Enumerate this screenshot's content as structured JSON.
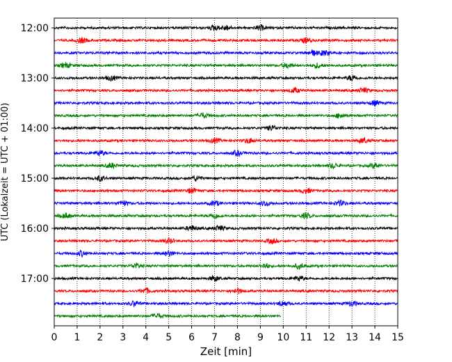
{
  "chart_data": {
    "type": "line",
    "title": "",
    "xlabel": "Zeit  [min]",
    "ylabel": "UTC (Lokalzeit = UTC + 01:00)",
    "xlim": [
      0,
      15
    ],
    "x_ticks": [
      "0",
      "1",
      "2",
      "3",
      "4",
      "5",
      "6",
      "7",
      "8",
      "9",
      "10",
      "11",
      "12",
      "13",
      "14",
      "15"
    ],
    "y_ticks": [
      "12:00",
      "13:00",
      "14:00",
      "15:00",
      "16:00",
      "17:00"
    ],
    "grid": "vertical dotted at each minute",
    "colors": [
      "#000000",
      "#ff0000",
      "#0000ff",
      "#008000"
    ],
    "traces_per_hour": 4,
    "trace_duration_min": 15,
    "series": [
      {
        "start": "12:00",
        "color": "#000000",
        "end_min": 15,
        "bursts_min": [
          7.0,
          7.5,
          9.0
        ]
      },
      {
        "start": "12:15",
        "color": "#ff0000",
        "end_min": 15,
        "bursts_min": [
          1.2,
          11.0
        ]
      },
      {
        "start": "12:30",
        "color": "#0000ff",
        "end_min": 15,
        "bursts_min": [
          11.3,
          11.8
        ]
      },
      {
        "start": "12:45",
        "color": "#008000",
        "end_min": 15,
        "bursts_min": [
          0.5,
          10.2,
          11.5
        ]
      },
      {
        "start": "13:00",
        "color": "#000000",
        "end_min": 15,
        "bursts_min": [
          2.5,
          13.0
        ]
      },
      {
        "start": "13:15",
        "color": "#ff0000",
        "end_min": 15,
        "bursts_min": [
          10.5,
          13.5
        ]
      },
      {
        "start": "13:30",
        "color": "#0000ff",
        "end_min": 15,
        "bursts_min": [
          14.0
        ]
      },
      {
        "start": "13:45",
        "color": "#008000",
        "end_min": 15,
        "bursts_min": [
          6.5,
          12.5
        ]
      },
      {
        "start": "14:00",
        "color": "#000000",
        "end_min": 15,
        "bursts_min": [
          9.5
        ]
      },
      {
        "start": "14:15",
        "color": "#ff0000",
        "end_min": 15,
        "bursts_min": [
          7.0,
          8.5,
          13.5
        ]
      },
      {
        "start": "14:30",
        "color": "#0000ff",
        "end_min": 15,
        "bursts_min": [
          2.0,
          8.0
        ]
      },
      {
        "start": "14:45",
        "color": "#008000",
        "end_min": 15,
        "bursts_min": [
          2.5,
          12.2,
          14.0
        ]
      },
      {
        "start": "15:00",
        "color": "#000000",
        "end_min": 15,
        "bursts_min": [
          2.0,
          6.2
        ]
      },
      {
        "start": "15:15",
        "color": "#ff0000",
        "end_min": 15,
        "bursts_min": [
          6.0,
          11.0
        ]
      },
      {
        "start": "15:30",
        "color": "#0000ff",
        "end_min": 15,
        "bursts_min": [
          3.0,
          7.0,
          9.2,
          12.5
        ]
      },
      {
        "start": "15:45",
        "color": "#008000",
        "end_min": 15,
        "bursts_min": [
          0.5,
          7.0,
          11.0
        ]
      },
      {
        "start": "16:00",
        "color": "#000000",
        "end_min": 15,
        "bursts_min": [
          6.0,
          7.2
        ]
      },
      {
        "start": "16:15",
        "color": "#ff0000",
        "end_min": 15,
        "bursts_min": [
          5.0,
          9.5
        ]
      },
      {
        "start": "16:30",
        "color": "#0000ff",
        "end_min": 15,
        "bursts_min": [
          1.2,
          5.0
        ]
      },
      {
        "start": "16:45",
        "color": "#008000",
        "end_min": 15,
        "bursts_min": [
          3.6,
          9.2,
          10.7
        ]
      },
      {
        "start": "17:00",
        "color": "#000000",
        "end_min": 15,
        "bursts_min": [
          7.0,
          10.7
        ]
      },
      {
        "start": "17:15",
        "color": "#ff0000",
        "end_min": 15,
        "bursts_min": [
          4.0,
          8.0
        ]
      },
      {
        "start": "17:30",
        "color": "#0000ff",
        "end_min": 15,
        "bursts_min": [
          3.5,
          10.0,
          13.0
        ]
      },
      {
        "start": "17:45",
        "color": "#008000",
        "end_min": 9.9,
        "bursts_min": [
          4.5
        ]
      }
    ]
  }
}
